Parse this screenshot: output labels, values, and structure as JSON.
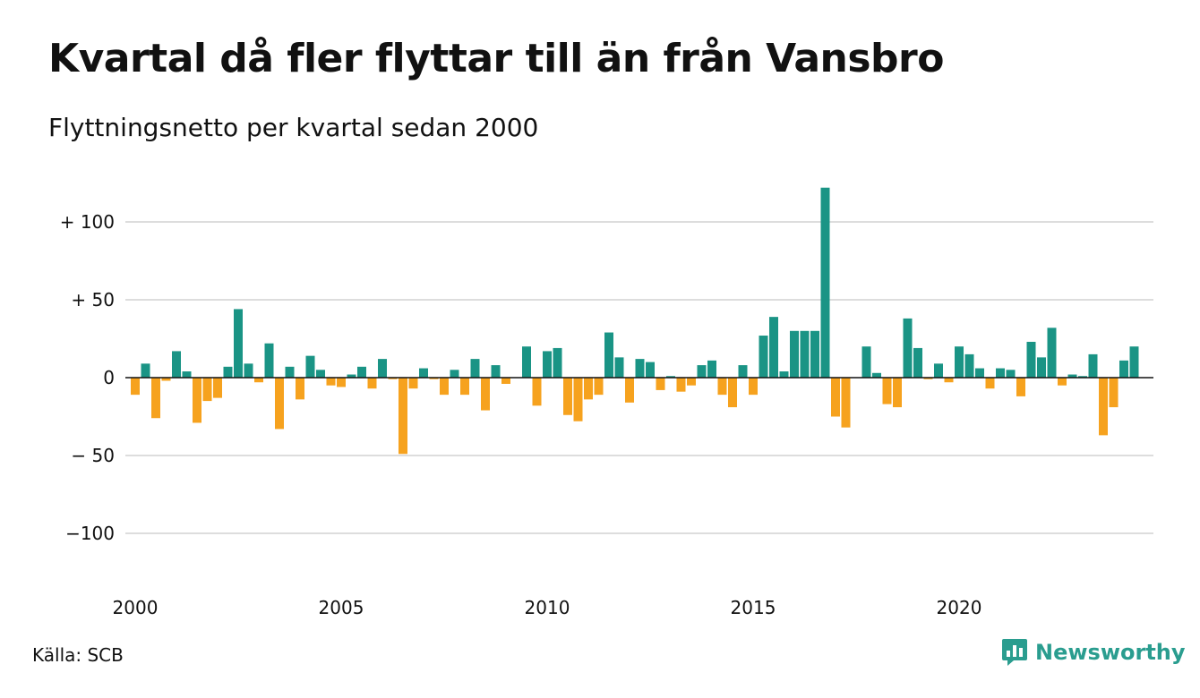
{
  "header": {
    "title": "Kvartal då fler flyttar till än från Vansbro",
    "subtitle": "Flyttningsnetto per kvartal sedan 2000"
  },
  "footer": {
    "source": "Källa: SCB",
    "brand": "Newsworthy"
  },
  "colors": {
    "positive": "#1a9485",
    "negative": "#f6a21e",
    "grid": "#dddddd",
    "axis": "#111111",
    "brand": "#2a9d8f"
  },
  "icons": {
    "brand_logo": "bar-chart-speech-icon"
  },
  "chart_data": {
    "type": "bar",
    "title": "Kvartal då fler flyttar till än från Vansbro",
    "subtitle": "Flyttningsnetto per kvartal sedan 2000",
    "xlabel": "",
    "ylabel": "",
    "ylim": [
      -130,
      130
    ],
    "x_start_year": 2000,
    "quarters_per_year": 4,
    "grid": true,
    "y_ticks": [
      {
        "value": 100,
        "label": "+ 100"
      },
      {
        "value": 50,
        "label": "+  50"
      },
      {
        "value": 0,
        "label": "0"
      },
      {
        "value": -50,
        "label": "− 50"
      },
      {
        "value": -100,
        "label": "−100"
      }
    ],
    "x_ticks": [
      {
        "value": 2000,
        "label": "2000"
      },
      {
        "value": 2005,
        "label": "2005"
      },
      {
        "value": 2010,
        "label": "2010"
      },
      {
        "value": 2015,
        "label": "2015"
      },
      {
        "value": 2020,
        "label": "2020"
      }
    ],
    "categories": [
      "2000 K1",
      "2000 K2",
      "2000 K3",
      "2000 K4",
      "2001 K1",
      "2001 K2",
      "2001 K3",
      "2001 K4",
      "2002 K1",
      "2002 K2",
      "2002 K3",
      "2002 K4",
      "2003 K1",
      "2003 K2",
      "2003 K3",
      "2003 K4",
      "2004 K1",
      "2004 K2",
      "2004 K3",
      "2004 K4",
      "2005 K1",
      "2005 K2",
      "2005 K3",
      "2005 K4",
      "2006 K1",
      "2006 K2",
      "2006 K3",
      "2006 K4",
      "2007 K1",
      "2007 K2",
      "2007 K3",
      "2007 K4",
      "2008 K1",
      "2008 K2",
      "2008 K3",
      "2008 K4",
      "2009 K1",
      "2009 K2",
      "2009 K3",
      "2009 K4",
      "2010 K1",
      "2010 K2",
      "2010 K3",
      "2010 K4",
      "2011 K1",
      "2011 K2",
      "2011 K3",
      "2011 K4",
      "2012 K1",
      "2012 K2",
      "2012 K3",
      "2012 K4",
      "2013 K1",
      "2013 K2",
      "2013 K3",
      "2013 K4",
      "2014 K1",
      "2014 K2",
      "2014 K3",
      "2014 K4",
      "2015 K1",
      "2015 K2",
      "2015 K3",
      "2015 K4",
      "2016 K1",
      "2016 K2",
      "2016 K3",
      "2016 K4",
      "2017 K1",
      "2017 K2",
      "2017 K3",
      "2017 K4",
      "2018 K1",
      "2018 K2",
      "2018 K3",
      "2018 K4",
      "2019 K1",
      "2019 K2",
      "2019 K3",
      "2019 K4",
      "2020 K1",
      "2020 K2",
      "2020 K3",
      "2020 K4",
      "2021 K1",
      "2021 K2",
      "2021 K3",
      "2021 K4",
      "2022 K1",
      "2022 K2",
      "2022 K3",
      "2022 K4",
      "2023 K1",
      "2023 K2",
      "2023 K3",
      "2023 K4",
      "2024 K1",
      "2024 K2",
      "2024 K3",
      "2024 K4",
      "2025 K1"
    ],
    "values": [
      -11,
      9,
      -26,
      -2,
      17,
      4,
      -29,
      -15,
      -13,
      7,
      44,
      9,
      -3,
      22,
      -33,
      7,
      -14,
      14,
      5,
      -5,
      -6,
      2,
      7,
      -7,
      12,
      -1,
      -49,
      -7,
      6,
      -1,
      -11,
      5,
      -11,
      12,
      -21,
      8,
      -4,
      0,
      20,
      -18,
      17,
      19,
      -24,
      -28,
      -14,
      -11,
      29,
      13,
      -16,
      12,
      10,
      -8,
      1,
      -9,
      -5,
      8,
      11,
      -11,
      -19,
      8,
      -11,
      27,
      39,
      4,
      30,
      30,
      30,
      122,
      -25,
      -32,
      0,
      20,
      3,
      -17,
      -19,
      38,
      19,
      -1,
      9,
      -3,
      20,
      15,
      6,
      -7,
      6,
      5,
      -12,
      23,
      13,
      32,
      -5,
      2,
      1,
      15,
      -37,
      -19,
      11,
      20,
      0,
      0,
      0
    ]
  }
}
